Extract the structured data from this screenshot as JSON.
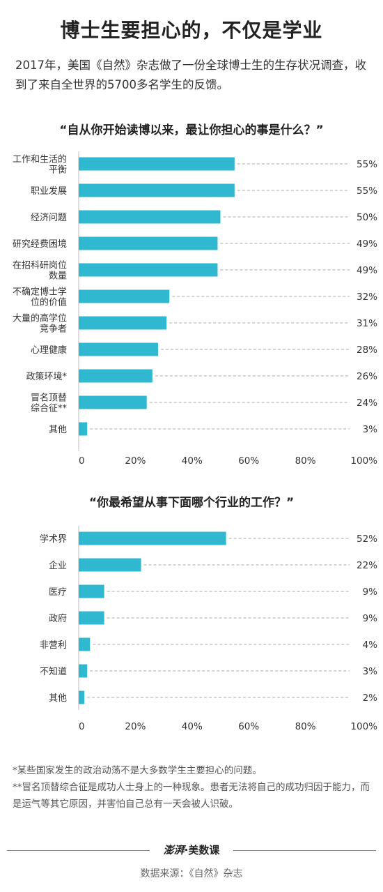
{
  "header": {
    "title": "博士生要担心的，不仅是学业",
    "intro": "2017年，美国《自然》杂志做了一份全球博士生的生存状况调查，收到了来自全世界的5700多名学生的反馈。"
  },
  "chart_data": [
    {
      "type": "bar",
      "orientation": "horizontal",
      "title": "“自从你开始读博以来，最让你担心的事是什么？”",
      "categories": [
        "工作和生活的\n平衡",
        "职业发展",
        "经济问题",
        "研究经费困境",
        "在招科研岗位\n数量",
        "不确定博士学\n位的价值",
        "大量的高学位\n竞争者",
        "心理健康",
        "政策环境*",
        "冒名顶替\n综合征**",
        "其他"
      ],
      "values": [
        55,
        55,
        50,
        49,
        49,
        32,
        31,
        28,
        26,
        24,
        3
      ],
      "value_labels": [
        "55%",
        "55%",
        "50%",
        "49%",
        "49%",
        "32%",
        "31%",
        "28%",
        "26%",
        "24%",
        "3%"
      ],
      "xlim": [
        0,
        100
      ],
      "xticks": [
        "0",
        "20%",
        "40%",
        "60%",
        "80%",
        "100%"
      ],
      "color": "#2fb8cf"
    },
    {
      "type": "bar",
      "orientation": "horizontal",
      "title": "“你最希望从事下面哪个行业的工作？”",
      "categories": [
        "学术界",
        "企业",
        "医疗",
        "政府",
        "非营利",
        "不知道",
        "其他"
      ],
      "values": [
        52,
        22,
        9,
        9,
        4,
        3,
        2
      ],
      "value_labels": [
        "52%",
        "22%",
        "9%",
        "9%",
        "4%",
        "3%",
        "2%"
      ],
      "xlim": [
        0,
        100
      ],
      "xticks": [
        "0",
        "20%",
        "40%",
        "60%",
        "80%",
        "100%"
      ],
      "color": "#2fb8cf"
    }
  ],
  "notes": {
    "note1": "*某些国家发生的政治动荡不是大多数学生主要担心的问题。",
    "note2": "**冒名顶替综合征是成功人士身上的一种现象。患者无法将自己的成功归因于能力，而是运气等其它原因，并害怕自己总有一天会被人识破。"
  },
  "footer": {
    "logo_left": "澎湃",
    "logo_right": "·美数课",
    "source": "数据来源：《自然》杂志"
  }
}
